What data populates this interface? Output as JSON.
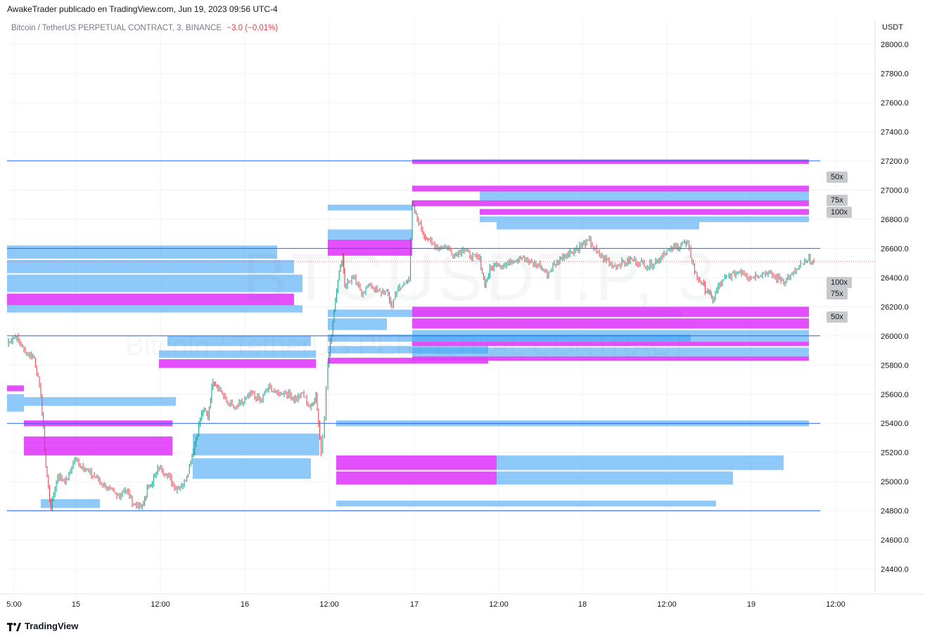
{
  "header": {
    "published_line": "AwakeTrader publicado en TradingView.com, Jun 19, 2023 09:56 UTC-4",
    "symbol_line": "Bitcoin / TetherUS PERPETUAL CONTRACT, 3, BINANCE",
    "change": "−3.0 (−0.01%)",
    "currency": "USDT"
  },
  "watermark": {
    "ticker": "BTCUSDT.P, 3",
    "description": "Bitcoin / TetherUS PERPETUAL CONTRACT"
  },
  "footer": {
    "brand": "TradingView"
  },
  "colors": {
    "up": "#089981",
    "down": "#f23645",
    "magenta": "#e040fb",
    "blue": "#42a5f5",
    "level_line": "#2962ff",
    "grid": "#f0f3fa"
  },
  "chart_data": {
    "type": "line",
    "title": "Bitcoin / TetherUS PERPETUAL CONTRACT, 3, BINANCE",
    "y_axis": {
      "label": "USDT",
      "ylim": [
        24200,
        28200
      ],
      "ticks": [
        28000.0,
        27800.0,
        27600.0,
        27400.0,
        27200.0,
        27000.0,
        26800.0,
        26600.0,
        26400.0,
        26200.0,
        26000.0,
        25800.0,
        25600.0,
        25400.0,
        25200.0,
        25000.0,
        24800.0,
        24600.0,
        24400.0
      ]
    },
    "x_axis": {
      "ticks": [
        "5:00",
        "15",
        "12:00",
        "16",
        "12:00",
        "17",
        "12:00",
        "18",
        "12:00",
        "19",
        "12:00"
      ]
    },
    "last_price": 26510,
    "series": [
      {
        "price_path": [
          [
            0,
            25950
          ],
          [
            0.5,
            26000
          ],
          [
            1,
            25900
          ],
          [
            1.6,
            25850
          ],
          [
            2,
            25600
          ],
          [
            2.3,
            25100
          ],
          [
            2.6,
            24820
          ],
          [
            3,
            25050
          ],
          [
            3.5,
            25000
          ],
          [
            4,
            25150
          ],
          [
            4.5,
            25100
          ],
          [
            5,
            25050
          ],
          [
            5.5,
            25000
          ],
          [
            6,
            24950
          ],
          [
            6.5,
            24900
          ],
          [
            7,
            24950
          ],
          [
            7.5,
            24850
          ],
          [
            8,
            24820
          ],
          [
            8.3,
            24950
          ],
          [
            8.6,
            25000
          ],
          [
            9,
            25100
          ],
          [
            9.5,
            25050
          ],
          [
            10,
            24950
          ],
          [
            10.5,
            25000
          ],
          [
            10.8,
            25100
          ],
          [
            11.2,
            25300
          ],
          [
            11.6,
            25500
          ],
          [
            11.9,
            25450
          ],
          [
            12.2,
            25700
          ],
          [
            12.5,
            25650
          ],
          [
            13,
            25550
          ],
          [
            13.5,
            25500
          ],
          [
            14,
            25550
          ],
          [
            14.5,
            25600
          ],
          [
            15,
            25550
          ],
          [
            15.5,
            25650
          ],
          [
            16,
            25600
          ],
          [
            16.5,
            25620
          ],
          [
            17,
            25560
          ],
          [
            17.5,
            25600
          ],
          [
            18,
            25500
          ],
          [
            18.3,
            25600
          ],
          [
            18.6,
            25200
          ],
          [
            18.8,
            25450
          ],
          [
            19,
            25800
          ],
          [
            19.3,
            26100
          ],
          [
            19.6,
            26400
          ],
          [
            19.9,
            26550
          ],
          [
            20,
            26350
          ],
          [
            20.5,
            26400
          ],
          [
            21,
            26300
          ],
          [
            21.5,
            26350
          ],
          [
            22,
            26300
          ],
          [
            22.5,
            26300
          ],
          [
            22.8,
            26200
          ],
          [
            23,
            26300
          ],
          [
            23.5,
            26350
          ],
          [
            23.8,
            26400
          ],
          [
            24,
            26900
          ],
          [
            24.3,
            26800
          ],
          [
            24.7,
            26700
          ],
          [
            25,
            26650
          ],
          [
            25.5,
            26600
          ],
          [
            26,
            26620
          ],
          [
            26.5,
            26550
          ],
          [
            27,
            26600
          ],
          [
            27.5,
            26550
          ],
          [
            28,
            26520
          ],
          [
            28.3,
            26350
          ],
          [
            28.6,
            26450
          ],
          [
            29,
            26500
          ],
          [
            29.5,
            26480
          ],
          [
            30,
            26520
          ],
          [
            30.5,
            26550
          ],
          [
            31,
            26500
          ],
          [
            31.5,
            26480
          ],
          [
            32,
            26420
          ],
          [
            32.5,
            26500
          ],
          [
            33,
            26550
          ],
          [
            33.5,
            26580
          ],
          [
            34,
            26620
          ],
          [
            34.5,
            26650
          ],
          [
            35,
            26560
          ],
          [
            35.5,
            26520
          ],
          [
            36,
            26480
          ],
          [
            36.5,
            26500
          ],
          [
            37,
            26520
          ],
          [
            37.5,
            26500
          ],
          [
            38,
            26480
          ],
          [
            38.5,
            26520
          ],
          [
            39,
            26580
          ],
          [
            39.5,
            26600
          ],
          [
            40,
            26640
          ],
          [
            40.3,
            26620
          ],
          [
            40.5,
            26550
          ],
          [
            40.8,
            26420
          ],
          [
            41.2,
            26350
          ],
          [
            41.5,
            26300
          ],
          [
            41.8,
            26250
          ],
          [
            42.2,
            26350
          ],
          [
            42.6,
            26400
          ],
          [
            43,
            26420
          ],
          [
            43.5,
            26450
          ],
          [
            44,
            26400
          ],
          [
            44.5,
            26420
          ],
          [
            45,
            26440
          ],
          [
            45.5,
            26400
          ],
          [
            46,
            26380
          ],
          [
            46.5,
            26420
          ],
          [
            47,
            26480
          ],
          [
            47.5,
            26520
          ],
          [
            47.8,
            26510
          ]
        ]
      }
    ],
    "level_lines": [
      27200,
      26600,
      26000,
      25400,
      24800
    ],
    "liquidation_tags": [
      {
        "label": "50x",
        "price": 27030,
        "side": "upper"
      },
      {
        "label": "75x",
        "price": 26870,
        "side": "upper"
      },
      {
        "label": "100x",
        "price": 26810,
        "side": "upper"
      },
      {
        "label": "100x",
        "price": 26330,
        "side": "lower"
      },
      {
        "label": "75x",
        "price": 26250,
        "side": "lower"
      },
      {
        "label": "50x",
        "price": 26100,
        "side": "lower"
      }
    ],
    "liquidity_bands": [
      {
        "x0": 0,
        "x1": 16,
        "p0": 26530,
        "p1": 26620,
        "color": "blue"
      },
      {
        "x0": 0,
        "x1": 17,
        "p0": 26430,
        "p1": 26520,
        "color": "blue"
      },
      {
        "x0": 0,
        "x1": 17.5,
        "p0": 26300,
        "p1": 26420,
        "color": "blue"
      },
      {
        "x0": 0,
        "x1": 17,
        "p0": 26210,
        "p1": 26290,
        "color": "magenta"
      },
      {
        "x0": 0,
        "x1": 17.5,
        "p0": 26160,
        "p1": 26210,
        "color": "blue"
      },
      {
        "x0": 9,
        "x1": 18.3,
        "p0": 25780,
        "p1": 25840,
        "color": "magenta"
      },
      {
        "x0": 9,
        "x1": 18.3,
        "p0": 25850,
        "p1": 25900,
        "color": "blue"
      },
      {
        "x0": 9.5,
        "x1": 18,
        "p0": 25930,
        "p1": 26000,
        "color": "blue"
      },
      {
        "x0": 0,
        "x1": 1,
        "p0": 25620,
        "p1": 25660,
        "color": "magenta"
      },
      {
        "x0": 0,
        "x1": 1,
        "p0": 25480,
        "p1": 25600,
        "color": "blue"
      },
      {
        "x0": 1,
        "x1": 10,
        "p0": 25520,
        "p1": 25580,
        "color": "blue"
      },
      {
        "x0": 1,
        "x1": 9.8,
        "p0": 25380,
        "p1": 25420,
        "color": "magenta"
      },
      {
        "x0": 1,
        "x1": 9.8,
        "p0": 25250,
        "p1": 25310,
        "color": "magenta"
      },
      {
        "x0": 1,
        "x1": 9.8,
        "p0": 25180,
        "p1": 25250,
        "color": "magenta"
      },
      {
        "x0": 11,
        "x1": 18.5,
        "p0": 25180,
        "p1": 25330,
        "color": "blue"
      },
      {
        "x0": 11,
        "x1": 18,
        "p0": 25020,
        "p1": 25160,
        "color": "blue"
      },
      {
        "x0": 2,
        "x1": 5.5,
        "p0": 24820,
        "p1": 24880,
        "color": "blue"
      },
      {
        "x0": 19,
        "x1": 24,
        "p0": 26550,
        "p1": 26660,
        "color": "magenta"
      },
      {
        "x0": 19,
        "x1": 24,
        "p0": 26660,
        "p1": 26730,
        "color": "blue"
      },
      {
        "x0": 19,
        "x1": 24,
        "p0": 26860,
        "p1": 26900,
        "color": "blue"
      },
      {
        "x0": 19,
        "x1": 28.5,
        "p0": 25810,
        "p1": 25850,
        "color": "magenta"
      },
      {
        "x0": 19,
        "x1": 28.5,
        "p0": 25880,
        "p1": 25930,
        "color": "blue"
      },
      {
        "x0": 19,
        "x1": 40.5,
        "p0": 25960,
        "p1": 26010,
        "color": "blue"
      },
      {
        "x0": 19,
        "x1": 22.5,
        "p0": 26040,
        "p1": 26120,
        "color": "blue"
      },
      {
        "x0": 19,
        "x1": 40,
        "p0": 26130,
        "p1": 26180,
        "color": "blue"
      },
      {
        "x0": 19.5,
        "x1": 47.5,
        "p0": 25380,
        "p1": 25420,
        "color": "blue"
      },
      {
        "x0": 19.5,
        "x1": 29,
        "p0": 25080,
        "p1": 25180,
        "color": "magenta"
      },
      {
        "x0": 29,
        "x1": 46,
        "p0": 25080,
        "p1": 25180,
        "color": "blue"
      },
      {
        "x0": 19.5,
        "x1": 29,
        "p0": 24980,
        "p1": 25070,
        "color": "magenta"
      },
      {
        "x0": 29,
        "x1": 43,
        "p0": 24980,
        "p1": 25070,
        "color": "blue"
      },
      {
        "x0": 19.5,
        "x1": 42,
        "p0": 24830,
        "p1": 24870,
        "color": "blue"
      },
      {
        "x0": 24,
        "x1": 47.5,
        "p0": 27180,
        "p1": 27210,
        "color": "magenta"
      },
      {
        "x0": 24,
        "x1": 47.5,
        "p0": 26990,
        "p1": 27030,
        "color": "magenta"
      },
      {
        "x0": 24,
        "x1": 47.5,
        "p0": 26890,
        "p1": 26930,
        "color": "magenta"
      },
      {
        "x0": 28,
        "x1": 47.5,
        "p0": 26830,
        "p1": 26870,
        "color": "magenta"
      },
      {
        "x0": 28,
        "x1": 47.5,
        "p0": 26780,
        "p1": 26820,
        "color": "blue"
      },
      {
        "x0": 28,
        "x1": 47.5,
        "p0": 26930,
        "p1": 26990,
        "color": "blue"
      },
      {
        "x0": 29,
        "x1": 41,
        "p0": 26730,
        "p1": 26780,
        "color": "blue"
      },
      {
        "x0": 24,
        "x1": 47.5,
        "p0": 26130,
        "p1": 26200,
        "color": "magenta"
      },
      {
        "x0": 24,
        "x1": 47.5,
        "p0": 26050,
        "p1": 26120,
        "color": "magenta"
      },
      {
        "x0": 24,
        "x1": 47.5,
        "p0": 25960,
        "p1": 26040,
        "color": "blue"
      },
      {
        "x0": 24,
        "x1": 47.5,
        "p0": 25930,
        "p1": 25960,
        "color": "magenta"
      },
      {
        "x0": 24,
        "x1": 47.5,
        "p0": 25860,
        "p1": 25920,
        "color": "blue"
      },
      {
        "x0": 24,
        "x1": 47.5,
        "p0": 25830,
        "p1": 25860,
        "color": "magenta"
      }
    ]
  }
}
